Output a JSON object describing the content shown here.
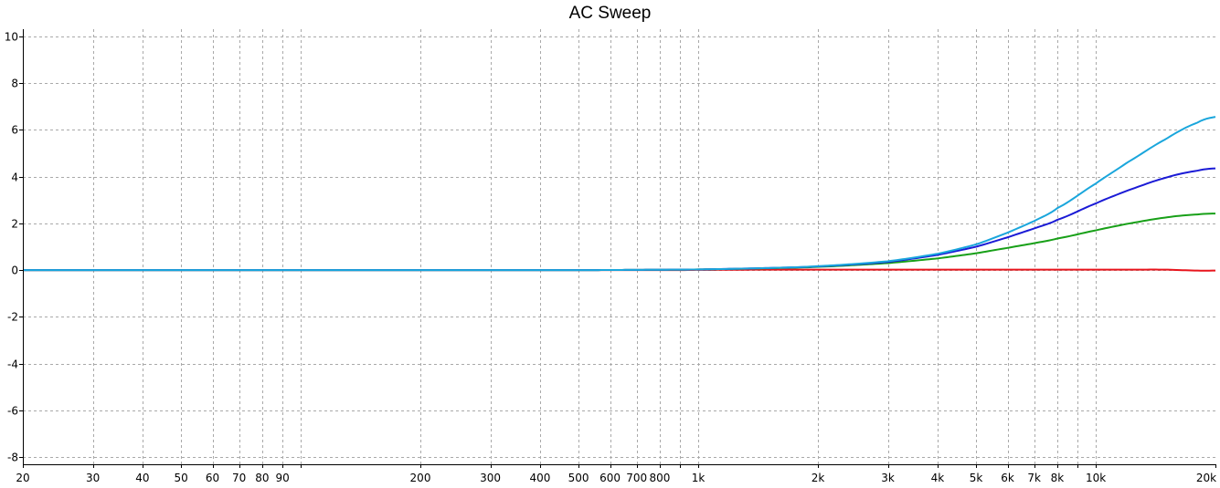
{
  "chart_data": {
    "type": "line",
    "title": "AC Sweep",
    "xlabel": "",
    "ylabel": "",
    "xscale": "log",
    "xlim": [
      20,
      20000
    ],
    "ylim": [
      -8.3,
      10.3
    ],
    "grid": true,
    "colors": {
      "red": "#e8141c",
      "green": "#18a018",
      "blue": "#1b1bd6",
      "cyan": "#1aa6dc",
      "grid": "#a9a9a9"
    },
    "x_ticks": [
      {
        "value": 20,
        "label": "20"
      },
      {
        "value": 30,
        "label": "30"
      },
      {
        "value": 40,
        "label": "40"
      },
      {
        "value": 50,
        "label": "50"
      },
      {
        "value": 60,
        "label": "60"
      },
      {
        "value": 70,
        "label": "70"
      },
      {
        "value": 80,
        "label": "80"
      },
      {
        "value": 90,
        "label": "90"
      },
      {
        "value": 100,
        "label": ""
      },
      {
        "value": 200,
        "label": "200"
      },
      {
        "value": 300,
        "label": "300"
      },
      {
        "value": 400,
        "label": "400"
      },
      {
        "value": 500,
        "label": "500"
      },
      {
        "value": 600,
        "label": "600"
      },
      {
        "value": 700,
        "label": "700"
      },
      {
        "value": 800,
        "label": "800"
      },
      {
        "value": 900,
        "label": ""
      },
      {
        "value": 1000,
        "label": "1k"
      },
      {
        "value": 2000,
        "label": "2k"
      },
      {
        "value": 3000,
        "label": "3k"
      },
      {
        "value": 4000,
        "label": "4k"
      },
      {
        "value": 5000,
        "label": "5k"
      },
      {
        "value": 6000,
        "label": "6k"
      },
      {
        "value": 7000,
        "label": "7k"
      },
      {
        "value": 8000,
        "label": "8k"
      },
      {
        "value": 9000,
        "label": ""
      },
      {
        "value": 10000,
        "label": "10k"
      },
      {
        "value": 20000,
        "label": "20k"
      }
    ],
    "y_ticks": [
      {
        "value": -8,
        "label": "-8"
      },
      {
        "value": -6,
        "label": "-6"
      },
      {
        "value": -4,
        "label": "-4"
      },
      {
        "value": -2,
        "label": "-2"
      },
      {
        "value": 0,
        "label": "0"
      },
      {
        "value": 2,
        "label": "2"
      },
      {
        "value": 4,
        "label": "4"
      },
      {
        "value": 6,
        "label": "6"
      },
      {
        "value": 8,
        "label": "8"
      },
      {
        "value": 10,
        "label": "10"
      }
    ],
    "x": [
      20,
      100,
      500,
      900,
      1000,
      1500,
      2000,
      3000,
      4000,
      5000,
      6000,
      7000,
      8000,
      10000,
      12000,
      15000,
      18000,
      20000
    ],
    "series": [
      {
        "color": "red",
        "values": [
          0,
          0,
          0,
          0,
          0.01,
          0.02,
          0.02,
          0.02,
          0.02,
          0.02,
          0.02,
          0.02,
          0.02,
          0.02,
          0.02,
          0.02,
          -0.02,
          -0.02
        ]
      },
      {
        "color": "green",
        "values": [
          0,
          0,
          0,
          0.02,
          0.03,
          0.08,
          0.14,
          0.3,
          0.5,
          0.72,
          0.95,
          1.15,
          1.35,
          1.7,
          1.98,
          2.25,
          2.38,
          2.42
        ]
      },
      {
        "color": "blue",
        "values": [
          0,
          0,
          0,
          0.02,
          0.03,
          0.09,
          0.16,
          0.35,
          0.65,
          1.0,
          1.4,
          1.78,
          2.15,
          2.85,
          3.4,
          3.95,
          4.25,
          4.35
        ]
      },
      {
        "color": "cyan",
        "values": [
          0,
          0,
          0,
          0.02,
          0.03,
          0.09,
          0.17,
          0.38,
          0.7,
          1.1,
          1.6,
          2.1,
          2.65,
          3.7,
          4.6,
          5.6,
          6.3,
          6.55
        ]
      }
    ]
  }
}
